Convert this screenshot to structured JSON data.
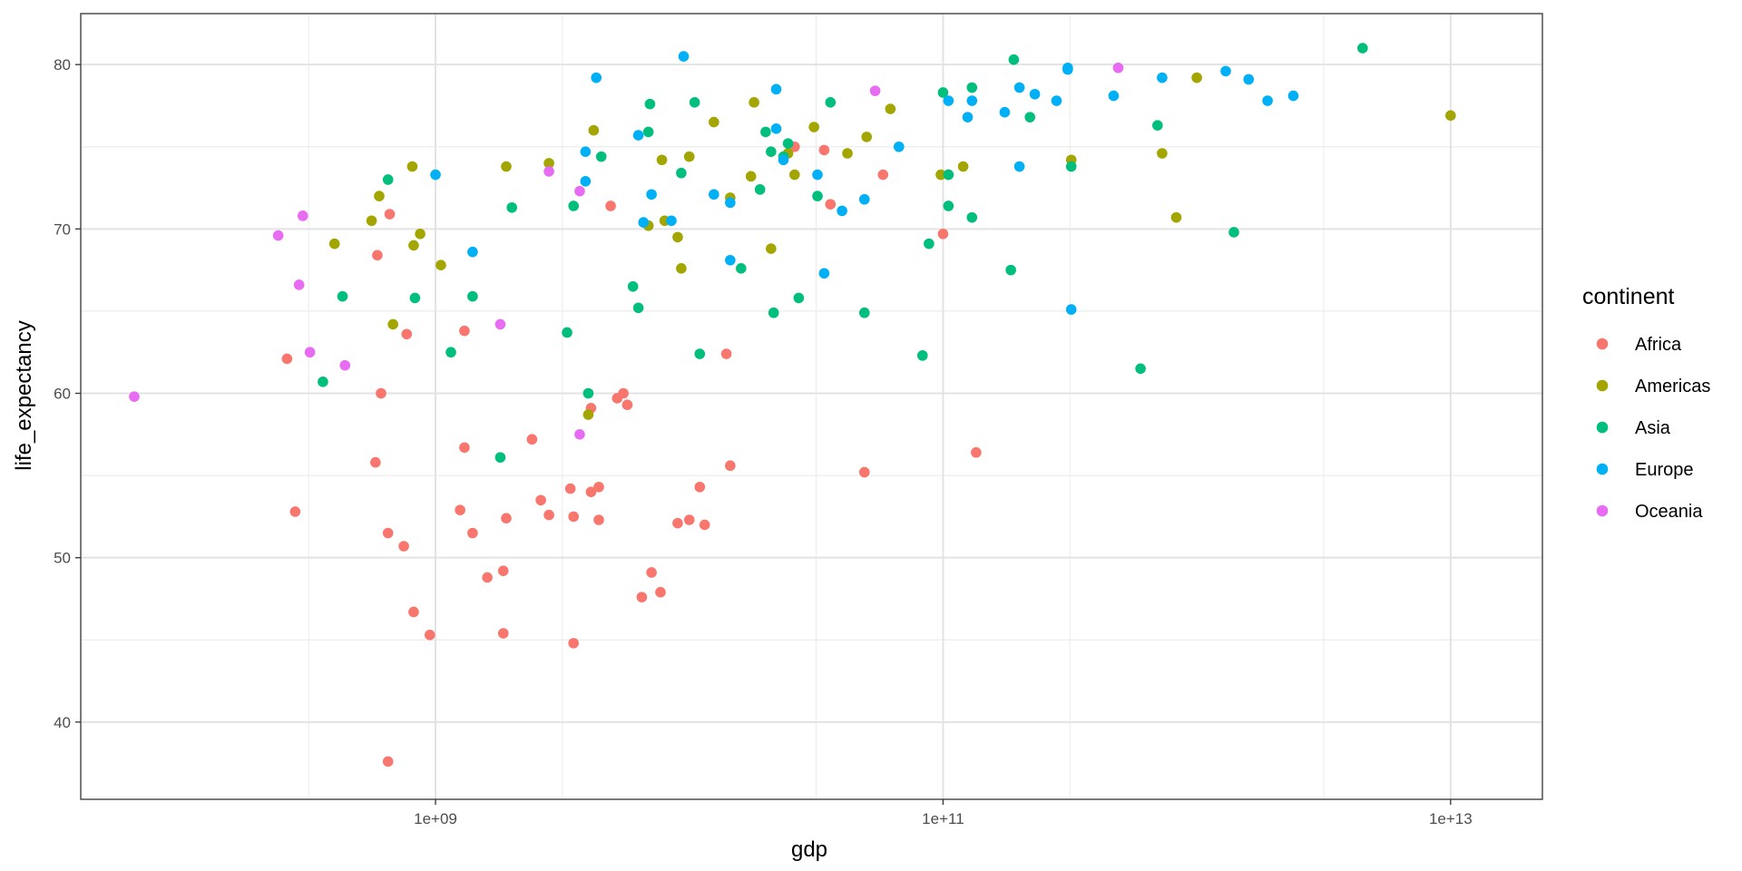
{
  "chart_data": {
    "type": "scatter",
    "xlabel": "gdp",
    "ylabel": "life_expectancy",
    "x_scale": "log10",
    "xlim": [
      40000000.0,
      23000000000000.0
    ],
    "ylim": [
      35.3,
      83.1
    ],
    "x_ticks": [
      {
        "value": 1000000000.0,
        "label": "1e+09"
      },
      {
        "value": 100000000000.0,
        "label": "1e+11"
      },
      {
        "value": 10000000000000.0,
        "label": "1e+13"
      }
    ],
    "y_ticks": [
      40,
      50,
      60,
      70,
      80
    ],
    "grid": true,
    "legend": {
      "title": "continent",
      "placement": "right"
    },
    "series": [
      {
        "name": "Africa",
        "color": "#F8766D",
        "points": [
          [
            650000000.0,
            37.6
          ],
          [
            280000000.0,
            52.8
          ],
          [
            260000000.0,
            62.1
          ],
          [
            610000000.0,
            60.0
          ],
          [
            580000000.0,
            55.8
          ],
          [
            650000000.0,
            51.5
          ],
          [
            750000000.0,
            50.7
          ],
          [
            820000000.0,
            46.7
          ],
          [
            950000000.0,
            45.3
          ],
          [
            770000000.0,
            63.6
          ],
          [
            590000000.0,
            68.4
          ],
          [
            660000000.0,
            70.9
          ],
          [
            1300000000.0,
            63.8
          ],
          [
            1300000000.0,
            56.7
          ],
          [
            1250000000.0,
            52.9
          ],
          [
            1400000000.0,
            51.5
          ],
          [
            1600000000.0,
            48.8
          ],
          [
            1850000000.0,
            49.2
          ],
          [
            1850000000.0,
            45.4
          ],
          [
            1900000000.0,
            52.4
          ],
          [
            2400000000.0,
            57.2
          ],
          [
            2600000000.0,
            53.5
          ],
          [
            2800000000.0,
            52.6
          ],
          [
            3400000000.0,
            54.2
          ],
          [
            3500000000.0,
            52.5
          ],
          [
            3500000000.0,
            44.8
          ],
          [
            4100000000.0,
            59.1
          ],
          [
            4100000000.0,
            54.0
          ],
          [
            4400000000.0,
            54.3
          ],
          [
            4400000000.0,
            52.3
          ],
          [
            5200000000.0,
            59.7
          ],
          [
            5500000000.0,
            60.0
          ],
          [
            5700000000.0,
            59.3
          ],
          [
            4900000000.0,
            71.4
          ],
          [
            6500000000.0,
            47.6
          ],
          [
            7100000000.0,
            49.1
          ],
          [
            7700000000.0,
            47.9
          ],
          [
            9000000000.0,
            52.1
          ],
          [
            10000000000.0,
            52.3
          ],
          [
            11000000000.0,
            54.3
          ],
          [
            11500000000.0,
            52.0
          ],
          [
            14000000000.0,
            62.4
          ],
          [
            14500000000.0,
            55.6
          ],
          [
            26000000000.0,
            75.0
          ],
          [
            34000000000.0,
            74.8
          ],
          [
            36000000000.0,
            71.5
          ],
          [
            49000000000.0,
            55.2
          ],
          [
            58000000000.0,
            73.3
          ],
          [
            100000000000.0,
            69.7
          ],
          [
            135000000000.0,
            56.4
          ]
        ]
      },
      {
        "name": "Americas",
        "color": "#A3A500",
        "points": [
          [
            400000000.0,
            69.1
          ],
          [
            560000000.0,
            70.5
          ],
          [
            600000000.0,
            72.0
          ],
          [
            680000000.0,
            64.2
          ],
          [
            810000000.0,
            73.8
          ],
          [
            820000000.0,
            69.0
          ],
          [
            870000000.0,
            69.7
          ],
          [
            1050000000.0,
            67.8
          ],
          [
            1900000000.0,
            73.8
          ],
          [
            2800000000.0,
            74.0
          ],
          [
            4000000000.0,
            58.7
          ],
          [
            4200000000.0,
            76.0
          ],
          [
            6900000000.0,
            70.2
          ],
          [
            7800000000.0,
            74.2
          ],
          [
            8000000000.0,
            70.5
          ],
          [
            9000000000.0,
            69.5
          ],
          [
            9300000000.0,
            67.6
          ],
          [
            10000000000.0,
            74.4
          ],
          [
            12500000000.0,
            76.5
          ],
          [
            14500000000.0,
            71.9
          ],
          [
            17500000000.0,
            73.2
          ],
          [
            18000000000.0,
            77.7
          ],
          [
            21000000000.0,
            68.8
          ],
          [
            24500000000.0,
            74.6
          ],
          [
            26000000000.0,
            73.3
          ],
          [
            31000000000.0,
            76.2
          ],
          [
            42000000000.0,
            74.6
          ],
          [
            50000000000.0,
            75.6
          ],
          [
            62000000000.0,
            77.3
          ],
          [
            98000000000.0,
            73.3
          ],
          [
            105000000000.0,
            73.3
          ],
          [
            120000000000.0,
            73.8
          ],
          [
            320000000000.0,
            74.2
          ],
          [
            730000000000.0,
            74.6
          ],
          [
            830000000000.0,
            70.7
          ],
          [
            1000000000000.0,
            79.2
          ],
          [
            10000000000000.0,
            76.9
          ]
        ]
      },
      {
        "name": "Asia",
        "color": "#00BF7D",
        "points": [
          [
            360000000.0,
            60.7
          ],
          [
            430000000.0,
            65.9
          ],
          [
            650000000.0,
            73.0
          ],
          [
            830000000.0,
            65.8
          ],
          [
            1150000000.0,
            62.5
          ],
          [
            1400000000.0,
            65.9
          ],
          [
            1800000000.0,
            56.1
          ],
          [
            2000000000.0,
            71.3
          ],
          [
            3300000000.0,
            63.7
          ],
          [
            3500000000.0,
            71.4
          ],
          [
            4000000000.0,
            60.0
          ],
          [
            4500000000.0,
            74.4
          ],
          [
            6000000000.0,
            66.5
          ],
          [
            6300000000.0,
            65.2
          ],
          [
            6900000000.0,
            75.9
          ],
          [
            7000000000.0,
            77.6
          ],
          [
            9300000000.0,
            73.4
          ],
          [
            10500000000.0,
            77.7
          ],
          [
            11000000000.0,
            62.4
          ],
          [
            16000000000.0,
            67.6
          ],
          [
            19000000000.0,
            72.4
          ],
          [
            20000000000.0,
            75.9
          ],
          [
            21000000000.0,
            74.7
          ],
          [
            21500000000.0,
            64.9
          ],
          [
            23500000000.0,
            74.4
          ],
          [
            24500000000.0,
            75.2
          ],
          [
            27000000000.0,
            65.8
          ],
          [
            32000000000.0,
            72.0
          ],
          [
            36000000000.0,
            77.7
          ],
          [
            49000000000.0,
            64.9
          ],
          [
            83000000000.0,
            62.3
          ],
          [
            88000000000.0,
            69.1
          ],
          [
            100000000000.0,
            78.3
          ],
          [
            105000000000.0,
            71.4
          ],
          [
            105000000000.0,
            73.3
          ],
          [
            130000000000.0,
            78.6
          ],
          [
            130000000000.0,
            70.7
          ],
          [
            185000000000.0,
            67.5
          ],
          [
            190000000000.0,
            80.3
          ],
          [
            220000000000.0,
            76.8
          ],
          [
            320000000000.0,
            73.8
          ],
          [
            600000000000.0,
            61.5
          ],
          [
            700000000000.0,
            76.3
          ],
          [
            1400000000000.0,
            69.8
          ],
          [
            4500000000000.0,
            81.0
          ]
        ]
      },
      {
        "name": "Europe",
        "color": "#00B0F6",
        "points": [
          [
            1000000000.0,
            73.3
          ],
          [
            1400000000.0,
            68.6
          ],
          [
            4300000000.0,
            79.2
          ],
          [
            3900000000.0,
            74.7
          ],
          [
            3900000000.0,
            72.9
          ],
          [
            6300000000.0,
            75.7
          ],
          [
            6600000000.0,
            70.4
          ],
          [
            7100000000.0,
            72.1
          ],
          [
            8500000000.0,
            70.5
          ],
          [
            9500000000.0,
            80.5
          ],
          [
            12500000000.0,
            72.1
          ],
          [
            14500000000.0,
            68.1
          ],
          [
            14500000000.0,
            71.6
          ],
          [
            22000000000.0,
            78.5
          ],
          [
            22000000000.0,
            76.1
          ],
          [
            23500000000.0,
            74.2
          ],
          [
            32000000000.0,
            73.3
          ],
          [
            34000000000.0,
            67.3
          ],
          [
            40000000000.0,
            71.1
          ],
          [
            49000000000.0,
            71.8
          ],
          [
            67000000000.0,
            75.0
          ],
          [
            105000000000.0,
            77.8
          ],
          [
            125000000000.0,
            76.8
          ],
          [
            130000000000.0,
            77.8
          ],
          [
            175000000000.0,
            77.1
          ],
          [
            200000000000.0,
            78.6
          ],
          [
            200000000000.0,
            73.8
          ],
          [
            230000000000.0,
            78.2
          ],
          [
            280000000000.0,
            77.8
          ],
          [
            310000000000.0,
            79.7
          ],
          [
            310000000000.0,
            79.8
          ],
          [
            320000000000.0,
            65.1
          ],
          [
            470000000000.0,
            78.1
          ],
          [
            730000000000.0,
            79.2
          ],
          [
            1300000000000.0,
            79.6
          ],
          [
            1600000000000.0,
            79.1
          ],
          [
            1900000000000.0,
            77.8
          ],
          [
            2400000000000.0,
            78.1
          ]
        ]
      },
      {
        "name": "Oceania",
        "color": "#E76BF3",
        "points": [
          [
            65000000.0,
            59.8
          ],
          [
            240000000.0,
            69.6
          ],
          [
            290000000.0,
            66.6
          ],
          [
            300000000.0,
            70.8
          ],
          [
            320000000.0,
            62.5
          ],
          [
            440000000.0,
            61.7
          ],
          [
            1800000000.0,
            64.2
          ],
          [
            2800000000.0,
            73.5
          ],
          [
            3700000000.0,
            57.5
          ],
          [
            3700000000.0,
            72.3
          ],
          [
            54000000000.0,
            78.4
          ],
          [
            490000000000.0,
            79.8
          ]
        ]
      }
    ]
  }
}
